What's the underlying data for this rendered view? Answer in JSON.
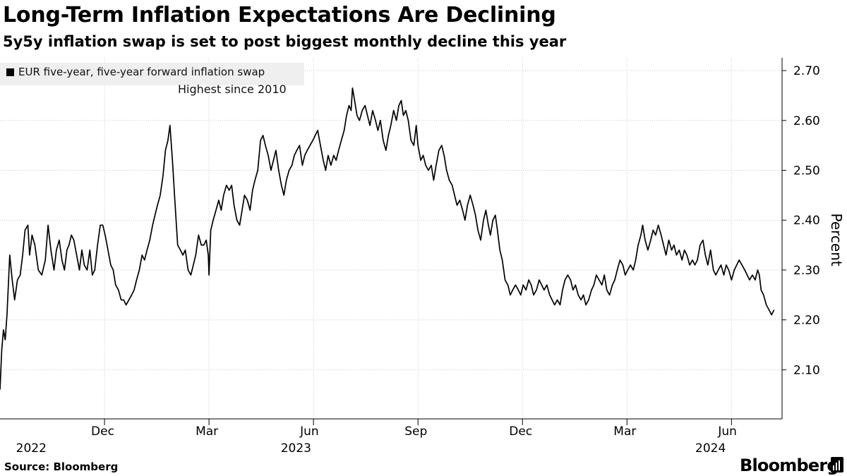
{
  "chart_data": {
    "type": "line",
    "title": "Long-Term Inflation Expectations Are Declining",
    "subtitle": "5y5y inflation swap is set to post biggest monthly decline this year",
    "ylabel": "Percent",
    "xlabel": "",
    "ylim": [
      2.0,
      2.7
    ],
    "yticks": [
      "2.10",
      "2.20",
      "2.30",
      "2.40",
      "2.50",
      "2.60",
      "2.70"
    ],
    "xticks": [
      {
        "label": "Dec",
        "month": 3
      },
      {
        "label": "Mar",
        "month": 6
      },
      {
        "label": "Jun",
        "month": 9
      },
      {
        "label": "Sep",
        "month": 12
      },
      {
        "label": "Dec",
        "month": 15
      },
      {
        "label": "Mar",
        "month": 18
      },
      {
        "label": "Jun",
        "month": 21
      }
    ],
    "year_labels": [
      {
        "label": "2022",
        "month": 0.5
      },
      {
        "label": "2023",
        "month": 8.1
      },
      {
        "label": "2024",
        "month": 20.0
      }
    ],
    "x_range": [
      0,
      22.5
    ],
    "x_unit": "months since Sep 1, 2022",
    "grid": true,
    "legend_position": "top-left",
    "annotation": {
      "text": "Highest since 2010",
      "month": 10.15,
      "value": 2.665
    },
    "series": [
      {
        "name": "EUR five-year, five-year forward inflation swap",
        "color": "#000000",
        "points": [
          [
            0.0,
            2.06
          ],
          [
            0.05,
            2.14
          ],
          [
            0.1,
            2.18
          ],
          [
            0.15,
            2.16
          ],
          [
            0.2,
            2.21
          ],
          [
            0.28,
            2.33
          ],
          [
            0.35,
            2.28
          ],
          [
            0.42,
            2.24
          ],
          [
            0.5,
            2.28
          ],
          [
            0.58,
            2.29
          ],
          [
            0.65,
            2.33
          ],
          [
            0.72,
            2.38
          ],
          [
            0.8,
            2.39
          ],
          [
            0.85,
            2.33
          ],
          [
            0.92,
            2.37
          ],
          [
            1.0,
            2.35
          ],
          [
            1.1,
            2.3
          ],
          [
            1.2,
            2.29
          ],
          [
            1.3,
            2.32
          ],
          [
            1.38,
            2.39
          ],
          [
            1.46,
            2.34
          ],
          [
            1.55,
            2.3
          ],
          [
            1.62,
            2.34
          ],
          [
            1.7,
            2.36
          ],
          [
            1.78,
            2.32
          ],
          [
            1.85,
            2.3
          ],
          [
            1.92,
            2.34
          ],
          [
            1.98,
            2.35
          ],
          [
            2.05,
            2.37
          ],
          [
            2.12,
            2.36
          ],
          [
            2.2,
            2.33
          ],
          [
            2.28,
            2.3
          ],
          [
            2.35,
            2.34
          ],
          [
            2.42,
            2.31
          ],
          [
            2.5,
            2.3
          ],
          [
            2.58,
            2.34
          ],
          [
            2.65,
            2.29
          ],
          [
            2.72,
            2.3
          ],
          [
            2.8,
            2.35
          ],
          [
            2.88,
            2.39
          ],
          [
            2.95,
            2.39
          ],
          [
            3.02,
            2.37
          ],
          [
            3.1,
            2.34
          ],
          [
            3.18,
            2.31
          ],
          [
            3.25,
            2.3
          ],
          [
            3.32,
            2.27
          ],
          [
            3.4,
            2.26
          ],
          [
            3.48,
            2.24
          ],
          [
            3.55,
            2.24
          ],
          [
            3.62,
            2.23
          ],
          [
            3.7,
            2.24
          ],
          [
            3.78,
            2.25
          ],
          [
            3.85,
            2.26
          ],
          [
            3.92,
            2.28
          ],
          [
            4.0,
            2.3
          ],
          [
            4.08,
            2.33
          ],
          [
            4.15,
            2.32
          ],
          [
            4.22,
            2.34
          ],
          [
            4.3,
            2.36
          ],
          [
            4.38,
            2.39
          ],
          [
            4.45,
            2.41
          ],
          [
            4.52,
            2.43
          ],
          [
            4.6,
            2.45
          ],
          [
            4.68,
            2.49
          ],
          [
            4.75,
            2.54
          ],
          [
            4.82,
            2.56
          ],
          [
            4.88,
            2.59
          ],
          [
            4.95,
            2.52
          ],
          [
            5.02,
            2.44
          ],
          [
            5.1,
            2.35
          ],
          [
            5.18,
            2.34
          ],
          [
            5.25,
            2.33
          ],
          [
            5.32,
            2.34
          ],
          [
            5.4,
            2.3
          ],
          [
            5.48,
            2.29
          ],
          [
            5.55,
            2.31
          ],
          [
            5.62,
            2.33
          ],
          [
            5.7,
            2.37
          ],
          [
            5.78,
            2.35
          ],
          [
            5.85,
            2.35
          ],
          [
            5.92,
            2.36
          ],
          [
            5.98,
            2.33
          ],
          [
            6.0,
            2.29
          ],
          [
            6.05,
            2.38
          ],
          [
            6.12,
            2.4
          ],
          [
            6.2,
            2.42
          ],
          [
            6.28,
            2.44
          ],
          [
            6.35,
            2.42
          ],
          [
            6.42,
            2.45
          ],
          [
            6.5,
            2.47
          ],
          [
            6.58,
            2.46
          ],
          [
            6.65,
            2.47
          ],
          [
            6.72,
            2.43
          ],
          [
            6.8,
            2.4
          ],
          [
            6.88,
            2.39
          ],
          [
            6.95,
            2.42
          ],
          [
            7.02,
            2.45
          ],
          [
            7.1,
            2.44
          ],
          [
            7.18,
            2.42
          ],
          [
            7.25,
            2.46
          ],
          [
            7.32,
            2.48
          ],
          [
            7.4,
            2.5
          ],
          [
            7.48,
            2.56
          ],
          [
            7.55,
            2.57
          ],
          [
            7.62,
            2.55
          ],
          [
            7.7,
            2.53
          ],
          [
            7.78,
            2.5
          ],
          [
            7.85,
            2.52
          ],
          [
            7.92,
            2.54
          ],
          [
            8.0,
            2.5
          ],
          [
            8.08,
            2.47
          ],
          [
            8.15,
            2.45
          ],
          [
            8.22,
            2.48
          ],
          [
            8.3,
            2.5
          ],
          [
            8.38,
            2.51
          ],
          [
            8.45,
            2.53
          ],
          [
            8.52,
            2.54
          ],
          [
            8.6,
            2.55
          ],
          [
            8.68,
            2.51
          ],
          [
            8.75,
            2.53
          ],
          [
            8.82,
            2.54
          ],
          [
            8.9,
            2.55
          ],
          [
            8.98,
            2.56
          ],
          [
            9.05,
            2.57
          ],
          [
            9.12,
            2.58
          ],
          [
            9.2,
            2.55
          ],
          [
            9.28,
            2.52
          ],
          [
            9.35,
            2.5
          ],
          [
            9.42,
            2.53
          ],
          [
            9.5,
            2.51
          ],
          [
            9.58,
            2.53
          ],
          [
            9.65,
            2.52
          ],
          [
            9.72,
            2.54
          ],
          [
            9.8,
            2.56
          ],
          [
            9.88,
            2.58
          ],
          [
            9.95,
            2.61
          ],
          [
            10.02,
            2.63
          ],
          [
            10.08,
            2.62
          ],
          [
            10.12,
            2.665
          ],
          [
            10.18,
            2.64
          ],
          [
            10.25,
            2.61
          ],
          [
            10.32,
            2.6
          ],
          [
            10.4,
            2.62
          ],
          [
            10.48,
            2.63
          ],
          [
            10.55,
            2.61
          ],
          [
            10.62,
            2.59
          ],
          [
            10.7,
            2.62
          ],
          [
            10.78,
            2.6
          ],
          [
            10.85,
            2.58
          ],
          [
            10.92,
            2.6
          ],
          [
            11.0,
            2.56
          ],
          [
            11.08,
            2.54
          ],
          [
            11.15,
            2.57
          ],
          [
            11.22,
            2.59
          ],
          [
            11.3,
            2.62
          ],
          [
            11.38,
            2.6
          ],
          [
            11.45,
            2.63
          ],
          [
            11.52,
            2.64
          ],
          [
            11.58,
            2.61
          ],
          [
            11.65,
            2.62
          ],
          [
            11.72,
            2.6
          ],
          [
            11.8,
            2.56
          ],
          [
            11.88,
            2.55
          ],
          [
            11.95,
            2.59
          ],
          [
            12.0,
            2.55
          ],
          [
            12.08,
            2.52
          ],
          [
            12.15,
            2.53
          ],
          [
            12.22,
            2.51
          ],
          [
            12.3,
            2.5
          ],
          [
            12.38,
            2.51
          ],
          [
            12.45,
            2.48
          ],
          [
            12.52,
            2.51
          ],
          [
            12.6,
            2.54
          ],
          [
            12.68,
            2.55
          ],
          [
            12.75,
            2.53
          ],
          [
            12.82,
            2.5
          ],
          [
            12.9,
            2.48
          ],
          [
            12.98,
            2.47
          ],
          [
            13.05,
            2.45
          ],
          [
            13.12,
            2.43
          ],
          [
            13.2,
            2.44
          ],
          [
            13.28,
            2.42
          ],
          [
            13.35,
            2.4
          ],
          [
            13.42,
            2.43
          ],
          [
            13.5,
            2.45
          ],
          [
            13.58,
            2.43
          ],
          [
            13.65,
            2.41
          ],
          [
            13.72,
            2.38
          ],
          [
            13.8,
            2.36
          ],
          [
            13.88,
            2.4
          ],
          [
            13.95,
            2.42
          ],
          [
            14.02,
            2.39
          ],
          [
            14.08,
            2.37
          ],
          [
            14.15,
            2.4
          ],
          [
            14.22,
            2.41
          ],
          [
            14.28,
            2.38
          ],
          [
            14.35,
            2.34
          ],
          [
            14.42,
            2.32
          ],
          [
            14.5,
            2.28
          ],
          [
            14.58,
            2.27
          ],
          [
            14.65,
            2.25
          ],
          [
            14.72,
            2.26
          ],
          [
            14.8,
            2.27
          ],
          [
            14.88,
            2.26
          ],
          [
            14.95,
            2.25
          ],
          [
            15.02,
            2.27
          ],
          [
            15.1,
            2.26
          ],
          [
            15.18,
            2.28
          ],
          [
            15.25,
            2.27
          ],
          [
            15.32,
            2.25
          ],
          [
            15.4,
            2.26
          ],
          [
            15.48,
            2.28
          ],
          [
            15.55,
            2.27
          ],
          [
            15.62,
            2.26
          ],
          [
            15.7,
            2.27
          ],
          [
            15.78,
            2.25
          ],
          [
            15.85,
            2.24
          ],
          [
            15.92,
            2.23
          ],
          [
            16.0,
            2.24
          ],
          [
            16.08,
            2.23
          ],
          [
            16.15,
            2.26
          ],
          [
            16.22,
            2.28
          ],
          [
            16.3,
            2.29
          ],
          [
            16.38,
            2.28
          ],
          [
            16.45,
            2.26
          ],
          [
            16.52,
            2.27
          ],
          [
            16.6,
            2.25
          ],
          [
            16.68,
            2.24
          ],
          [
            16.75,
            2.25
          ],
          [
            16.82,
            2.23
          ],
          [
            16.9,
            2.24
          ],
          [
            16.98,
            2.26
          ],
          [
            17.05,
            2.27
          ],
          [
            17.12,
            2.29
          ],
          [
            17.2,
            2.28
          ],
          [
            17.28,
            2.27
          ],
          [
            17.35,
            2.29
          ],
          [
            17.42,
            2.26
          ],
          [
            17.5,
            2.25
          ],
          [
            17.58,
            2.27
          ],
          [
            17.65,
            2.28
          ],
          [
            17.72,
            2.3
          ],
          [
            17.8,
            2.32
          ],
          [
            17.88,
            2.31
          ],
          [
            17.95,
            2.29
          ],
          [
            18.02,
            2.3
          ],
          [
            18.1,
            2.31
          ],
          [
            18.18,
            2.3
          ],
          [
            18.25,
            2.32
          ],
          [
            18.32,
            2.35
          ],
          [
            18.4,
            2.37
          ],
          [
            18.45,
            2.39
          ],
          [
            18.52,
            2.36
          ],
          [
            18.6,
            2.34
          ],
          [
            18.68,
            2.36
          ],
          [
            18.75,
            2.38
          ],
          [
            18.82,
            2.37
          ],
          [
            18.9,
            2.39
          ],
          [
            18.98,
            2.37
          ],
          [
            19.05,
            2.35
          ],
          [
            19.12,
            2.33
          ],
          [
            19.2,
            2.36
          ],
          [
            19.28,
            2.34
          ],
          [
            19.35,
            2.35
          ],
          [
            19.42,
            2.33
          ],
          [
            19.5,
            2.34
          ],
          [
            19.58,
            2.32
          ],
          [
            19.65,
            2.34
          ],
          [
            19.72,
            2.33
          ],
          [
            19.8,
            2.31
          ],
          [
            19.88,
            2.32
          ],
          [
            19.95,
            2.31
          ],
          [
            20.02,
            2.32
          ],
          [
            20.1,
            2.35
          ],
          [
            20.18,
            2.36
          ],
          [
            20.25,
            2.33
          ],
          [
            20.32,
            2.31
          ],
          [
            20.4,
            2.34
          ],
          [
            20.48,
            2.3
          ],
          [
            20.55,
            2.29
          ],
          [
            20.62,
            2.3
          ],
          [
            20.7,
            2.31
          ],
          [
            20.78,
            2.29
          ],
          [
            20.85,
            2.31
          ],
          [
            20.92,
            2.3
          ],
          [
            21.0,
            2.28
          ],
          [
            21.08,
            2.3
          ],
          [
            21.15,
            2.31
          ],
          [
            21.22,
            2.32
          ],
          [
            21.3,
            2.31
          ],
          [
            21.38,
            2.3
          ],
          [
            21.45,
            2.29
          ],
          [
            21.52,
            2.28
          ],
          [
            21.6,
            2.29
          ],
          [
            21.68,
            2.28
          ],
          [
            21.75,
            2.3
          ],
          [
            21.8,
            2.29
          ],
          [
            21.85,
            2.26
          ],
          [
            21.92,
            2.25
          ],
          [
            22.0,
            2.23
          ],
          [
            22.08,
            2.22
          ],
          [
            22.15,
            2.21
          ],
          [
            22.22,
            2.22
          ]
        ]
      }
    ]
  },
  "legend": {
    "label": "EUR five-year, five-year forward inflation swap"
  },
  "source": "Source: Bloomberg",
  "brand": "Bloomberg"
}
